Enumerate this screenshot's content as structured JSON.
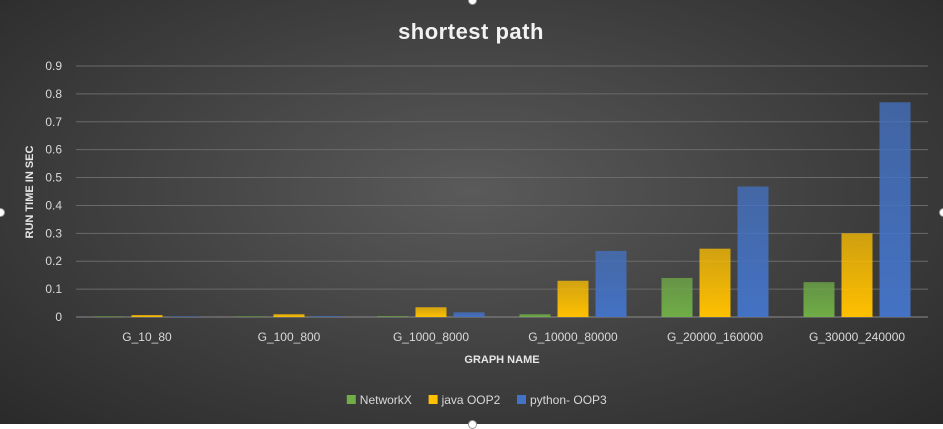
{
  "chart_data": {
    "type": "bar",
    "title": "shortest path",
    "xlabel": "GRAPH NAME",
    "ylabel": "RUN TIME IN SEC",
    "ylim": [
      0,
      0.9
    ],
    "yticks": [
      "0",
      "0.1",
      "0.2",
      "0.3",
      "0.4",
      "0.5",
      "0.6",
      "0.7",
      "0.8",
      "0.9"
    ],
    "grid": true,
    "legend_position": "bottom",
    "categories": [
      "G_10_80",
      "G_100_800",
      "G_1000_8000",
      "G_10000_80000",
      "G_20000_160000",
      "G_30000_240000"
    ],
    "series": [
      {
        "name": "NetworkX",
        "color": "#70ad47",
        "values": [
          0.0005,
          0.001,
          0.003,
          0.01,
          0.14,
          0.125
        ]
      },
      {
        "name": "java OOP2",
        "color": "#ffc000",
        "values": [
          0.007,
          0.01,
          0.035,
          0.13,
          0.245,
          0.3
        ]
      },
      {
        "name": "python- OOP3",
        "color": "#4472c4",
        "values": [
          0.0008,
          0.003,
          0.017,
          0.237,
          0.468,
          0.77
        ]
      }
    ]
  }
}
